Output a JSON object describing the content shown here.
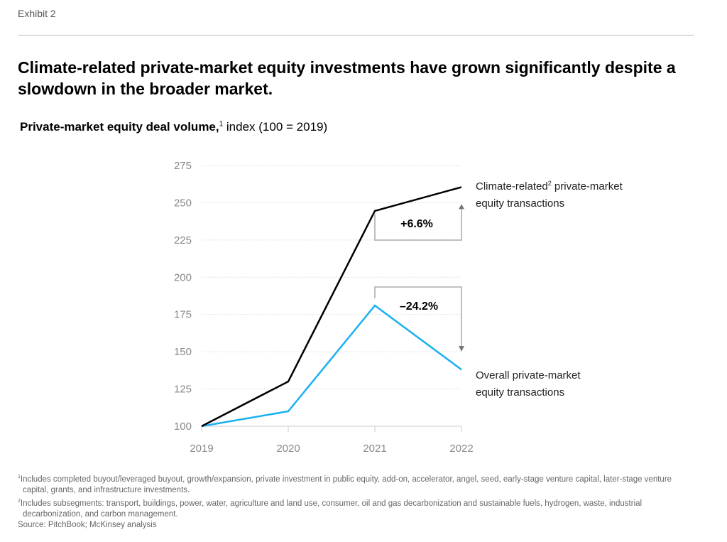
{
  "exhibit": "Exhibit 2",
  "title": "Climate-related private-market equity investments have grown significantly despite a slowdown in the broader market.",
  "subtitle": {
    "bold": "Private-market equity deal volume,",
    "sup": "1",
    "rest": " index (100 = 2019)"
  },
  "chart_data": {
    "type": "line",
    "title": "Private-market equity deal volume, index (100 = 2019)",
    "x": [
      "2019",
      "2020",
      "2021",
      "2022"
    ],
    "ylim": [
      100,
      275
    ],
    "yticks": [
      "100",
      "125",
      "150",
      "175",
      "200",
      "225",
      "250",
      "275"
    ],
    "grid": true,
    "series": [
      {
        "name": "Climate-related private-market equity transactions",
        "label_line1": "Climate-related",
        "label_sup": "2",
        "label_line1b": " private-market",
        "label_line2": "equity transactions",
        "color": "#000000",
        "values": [
          100,
          130,
          244.5,
          260.5
        ]
      },
      {
        "name": "Overall private-market equity transactions",
        "label_line1": "Overall private-market",
        "label_line2": "equity transactions",
        "color": "#1AB0F0",
        "values": [
          100,
          110,
          181,
          138
        ]
      }
    ],
    "annotations": [
      {
        "text": "+6.6%",
        "series": 0,
        "direction": "up"
      },
      {
        "text": "–24.2%",
        "series": 1,
        "direction": "down"
      }
    ]
  },
  "footnotes": {
    "note1_sup": "1",
    "note1": "Includes completed buyout/leveraged buyout, growth/expansion, private investment in public equity, add-on, accelerator, angel, seed, early-stage venture capital, later-stage venture capital, grants, and infrastructure investments.",
    "note2_sup": "2",
    "note2": "Includes subsegments: transport, buildings, power, water, agriculture and land use, consumer, oil and gas decarbonization and sustainable fuels, hydrogen, waste, industrial decarbonization, and carbon management.",
    "source": "Source: PitchBook; McKinsey analysis"
  }
}
